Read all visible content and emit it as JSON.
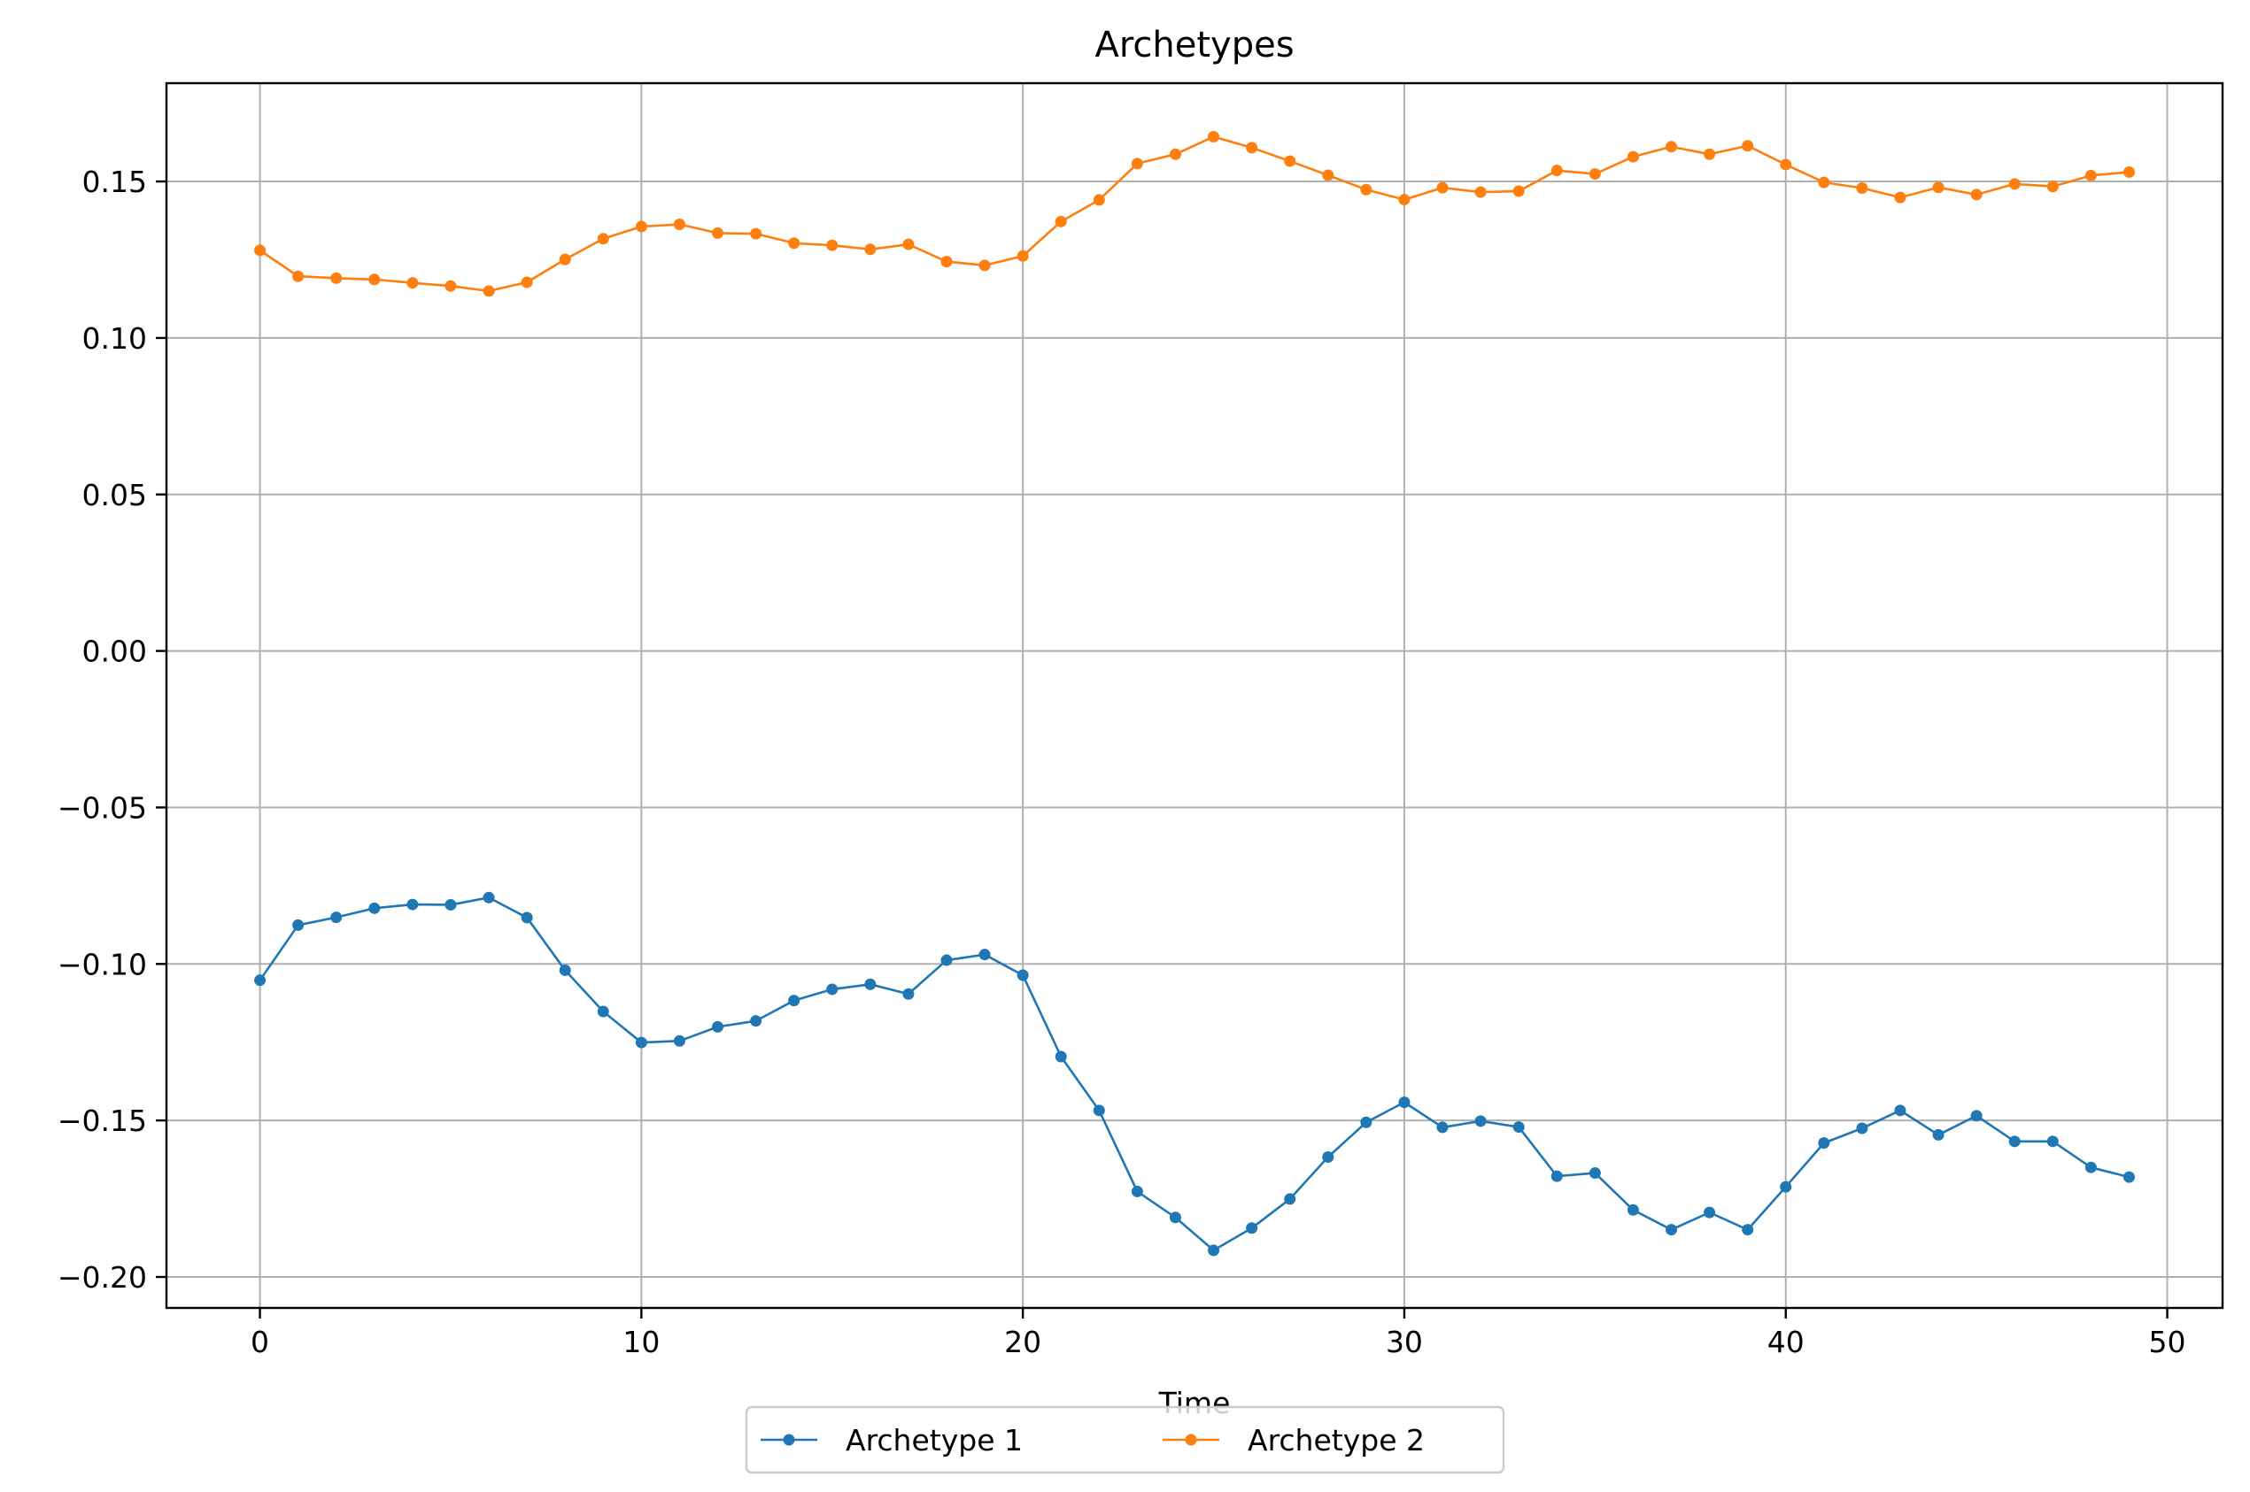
{
  "chart_data": {
    "type": "line",
    "title": "Archetypes",
    "xlabel": "Time",
    "ylabel": "",
    "xlim": [
      -2.45,
      51.45
    ],
    "ylim": [
      -0.2099,
      0.1814
    ],
    "xticks": [
      0,
      10,
      20,
      30,
      40,
      50
    ],
    "xtick_labels": [
      "0",
      "10",
      "20",
      "30",
      "40",
      "50"
    ],
    "yticks": [
      -0.2,
      -0.15,
      -0.1,
      -0.05,
      0.0,
      0.05,
      0.1,
      0.15
    ],
    "ytick_labels": [
      "−0.20",
      "−0.15",
      "−0.10",
      "−0.05",
      "0.00",
      "0.05",
      "0.10",
      "0.15"
    ],
    "grid": true,
    "legend_position": "bottom-center",
    "x": [
      0,
      1,
      2,
      3,
      4,
      5,
      6,
      7,
      8,
      9,
      10,
      11,
      12,
      13,
      14,
      15,
      16,
      17,
      18,
      19,
      20,
      21,
      22,
      23,
      24,
      25,
      26,
      27,
      28,
      29,
      30,
      31,
      32,
      33,
      34,
      35,
      36,
      37,
      38,
      39,
      40,
      41,
      42,
      43,
      44,
      45,
      46,
      47,
      48,
      49
    ],
    "series": [
      {
        "name": "Archetype 1",
        "color": "#1f77b4",
        "marker": "circle",
        "values": [
          -0.1052,
          -0.0876,
          -0.0851,
          -0.0822,
          -0.081,
          -0.0811,
          -0.0788,
          -0.0852,
          -0.102,
          -0.1152,
          -0.1251,
          -0.1246,
          -0.1201,
          -0.1182,
          -0.1117,
          -0.1081,
          -0.1065,
          -0.1096,
          -0.0988,
          -0.097,
          -0.1036,
          -0.1296,
          -0.1468,
          -0.1727,
          -0.181,
          -0.1915,
          -0.1844,
          -0.1751,
          -0.1617,
          -0.1506,
          -0.1442,
          -0.1522,
          -0.1502,
          -0.1521,
          -0.1678,
          -0.1668,
          -0.1786,
          -0.1849,
          -0.1794,
          -0.1849,
          -0.1712,
          -0.1572,
          -0.1525,
          -0.1468,
          -0.1546,
          -0.1485,
          -0.1567,
          -0.1567,
          -0.165,
          -0.1681
        ]
      },
      {
        "name": "Archetype 2",
        "color": "#ff7f0e",
        "marker": "circle",
        "values": [
          0.128,
          0.1197,
          0.1191,
          0.1187,
          0.1176,
          0.1166,
          0.115,
          0.1178,
          0.1251,
          0.1317,
          0.1356,
          0.1363,
          0.1335,
          0.1333,
          0.1303,
          0.1296,
          0.1283,
          0.1299,
          0.1244,
          0.1232,
          0.1262,
          0.1372,
          0.1441,
          0.1557,
          0.1587,
          0.1643,
          0.1608,
          0.1565,
          0.152,
          0.1474,
          0.1442,
          0.148,
          0.1466,
          0.1469,
          0.1535,
          0.1524,
          0.1579,
          0.1611,
          0.1587,
          0.1614,
          0.1554,
          0.1497,
          0.1479,
          0.1449,
          0.1481,
          0.1458,
          0.1492,
          0.1484,
          0.1519,
          0.153
        ]
      }
    ]
  }
}
